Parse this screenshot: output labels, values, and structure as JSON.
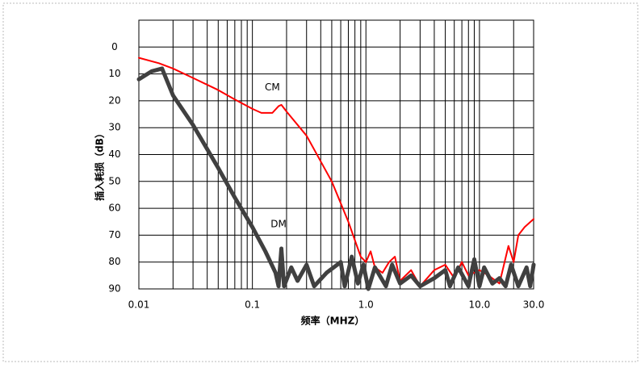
{
  "chart_data": {
    "type": "line",
    "xlabel": "频率（MHZ）",
    "ylabel": "插入耗损（dB）",
    "xscale": "log",
    "yinverted": true,
    "xlim": [
      0.01,
      30
    ],
    "ylim": [
      -10,
      90
    ],
    "xticks": [
      0.01,
      0.1,
      {
        "value": 1,
        "label": "1.0"
      },
      {
        "value": 10,
        "label": "10.0"
      },
      {
        "value": 30,
        "label": "30.0"
      }
    ],
    "yticks": [
      0,
      10,
      20,
      30,
      40,
      50,
      60,
      70,
      80,
      90
    ],
    "xgrid": [
      0.02,
      0.03,
      0.04,
      0.05,
      0.06,
      0.07,
      0.08,
      0.09,
      0.2,
      0.3,
      0.4,
      0.5,
      0.6,
      0.7,
      0.8,
      0.9,
      2,
      3,
      4,
      5,
      6,
      7,
      8,
      9,
      20
    ],
    "grid": true,
    "annotations": [
      {
        "text": "CM",
        "x": 0.15,
        "y": 15
      },
      {
        "text": "DM",
        "x": 0.17,
        "y": 66
      }
    ],
    "series": [
      {
        "name": "CM",
        "color": "#ff0000",
        "width": 2,
        "x": [
          0.01,
          0.015,
          0.02,
          0.03,
          0.05,
          0.07,
          0.1,
          0.12,
          0.15,
          0.17,
          0.18,
          0.2,
          0.3,
          0.5,
          0.7,
          0.9,
          1.0,
          1.1,
          1.2,
          1.4,
          1.6,
          1.8,
          2.0,
          2.5,
          3,
          4,
          5,
          6,
          7,
          8,
          10,
          12,
          15,
          18,
          20,
          22,
          25,
          30
        ],
        "values": [
          4,
          6,
          8,
          11.5,
          16,
          19.5,
          23,
          24.5,
          24.5,
          22,
          21.5,
          24,
          33,
          50,
          65,
          78,
          80,
          76,
          82,
          84,
          80,
          78,
          87,
          83,
          89,
          83,
          81,
          86,
          80,
          85,
          83,
          85,
          88,
          74,
          80,
          70,
          67,
          64
        ]
      },
      {
        "name": "DM",
        "color": "#404040",
        "width": 5,
        "x": [
          0.01,
          0.013,
          0.016,
          0.02,
          0.03,
          0.05,
          0.07,
          0.1,
          0.13,
          0.16,
          0.17,
          0.18,
          0.19,
          0.22,
          0.25,
          0.3,
          0.35,
          0.45,
          0.6,
          0.65,
          0.75,
          0.85,
          0.95,
          1.05,
          1.2,
          1.5,
          1.7,
          2,
          2.5,
          3,
          4,
          5,
          5.5,
          6.5,
          8,
          9,
          10,
          11,
          13,
          15,
          17,
          19,
          22,
          26,
          28,
          30
        ],
        "values": [
          12,
          9,
          8,
          18,
          29,
          45,
          56,
          67,
          76,
          84,
          89,
          75,
          89,
          82,
          87,
          81,
          89,
          84,
          80,
          89,
          78,
          88,
          81,
          90,
          82,
          89,
          81,
          88,
          85,
          89,
          86,
          83,
          89,
          82,
          89,
          79,
          89,
          82,
          88,
          86,
          89,
          81,
          89,
          82,
          89,
          81
        ]
      }
    ]
  }
}
